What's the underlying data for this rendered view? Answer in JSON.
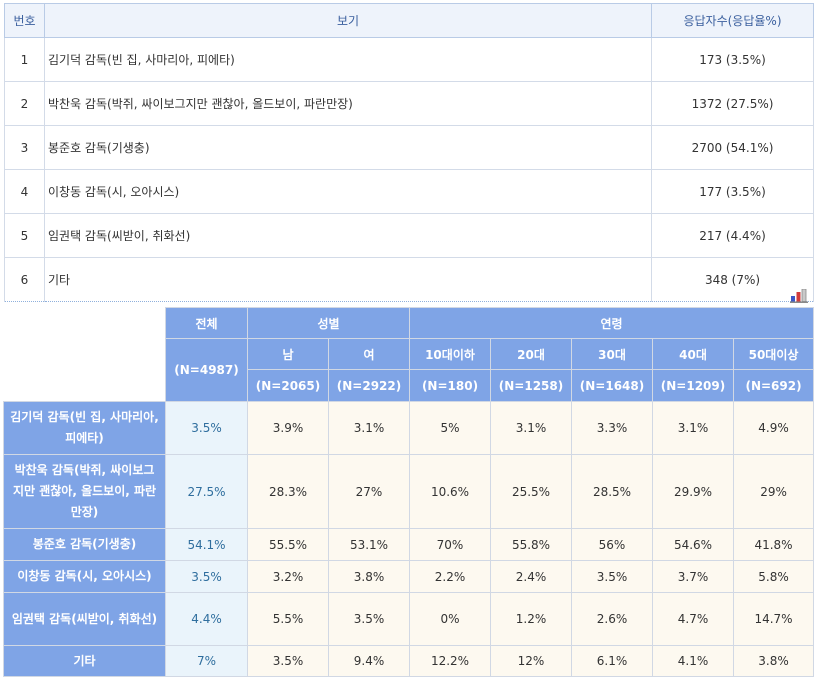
{
  "top_table": {
    "headers": {
      "no": "번호",
      "option": "보기",
      "responses": "응답자수(응답율%)"
    },
    "rows": [
      {
        "no": "1",
        "option": "김기덕 감독(빈 집, 사마리아, 피에타)",
        "responses": "173 (3.5%)"
      },
      {
        "no": "2",
        "option": "박찬욱 감독(박쥐, 싸이보그지만 괜찮아, 올드보이, 파란만장)",
        "responses": "1372 (27.5%)"
      },
      {
        "no": "3",
        "option": "봉준호 감독(기생충)",
        "responses": "2700 (54.1%)"
      },
      {
        "no": "4",
        "option": "이창동 감독(시, 오아시스)",
        "responses": "177 (3.5%)"
      },
      {
        "no": "5",
        "option": "임권택 감독(씨받이, 취화선)",
        "responses": "217 (4.4%)"
      },
      {
        "no": "6",
        "option": "기타",
        "responses": "348 (7%)"
      }
    ]
  },
  "chart_icon": {
    "icon": "bar-chart-icon",
    "colors": [
      "#3b58c8",
      "#d23c3c",
      "#8a8a8a"
    ]
  },
  "cross_table": {
    "total_header": "전체",
    "total_n": "(N=4987)",
    "gender_header": "성별",
    "age_header": "연령",
    "columns": [
      {
        "label": "남",
        "n": "(N=2065)"
      },
      {
        "label": "여",
        "n": "(N=2922)"
      },
      {
        "label": "10대이하",
        "n": "(N=180)"
      },
      {
        "label": "20대",
        "n": "(N=1258)"
      },
      {
        "label": "30대",
        "n": "(N=1648)"
      },
      {
        "label": "40대",
        "n": "(N=1209)"
      },
      {
        "label": "50대이상",
        "n": "(N=692)"
      }
    ],
    "rows": [
      {
        "label": "김기덕 감독(빈 집, 사마리아, 피에타)",
        "total": "3.5%",
        "values": [
          "3.9%",
          "3.1%",
          "5%",
          "3.1%",
          "3.3%",
          "3.1%",
          "4.9%"
        ]
      },
      {
        "label": "박찬욱 감독(박쥐, 싸이보그지만 괜찮아, 올드보이, 파란만장)",
        "total": "27.5%",
        "values": [
          "28.3%",
          "27%",
          "10.6%",
          "25.5%",
          "28.5%",
          "29.9%",
          "29%"
        ]
      },
      {
        "label": "봉준호 감독(기생충)",
        "total": "54.1%",
        "values": [
          "55.5%",
          "53.1%",
          "70%",
          "55.8%",
          "56%",
          "54.6%",
          "41.8%"
        ]
      },
      {
        "label": "이창동 감독(시, 오아시스)",
        "total": "3.5%",
        "values": [
          "3.2%",
          "3.8%",
          "2.2%",
          "2.4%",
          "3.5%",
          "3.7%",
          "5.8%"
        ]
      },
      {
        "label": "임권택 감독(씨받이, 취화선)",
        "total": "4.4%",
        "values": [
          "5.5%",
          "3.5%",
          "0%",
          "1.2%",
          "2.6%",
          "4.7%",
          "14.7%"
        ]
      },
      {
        "label": "기타",
        "total": "7%",
        "values": [
          "3.5%",
          "9.4%",
          "12.2%",
          "12%",
          "6.1%",
          "4.1%",
          "3.8%"
        ]
      }
    ]
  }
}
